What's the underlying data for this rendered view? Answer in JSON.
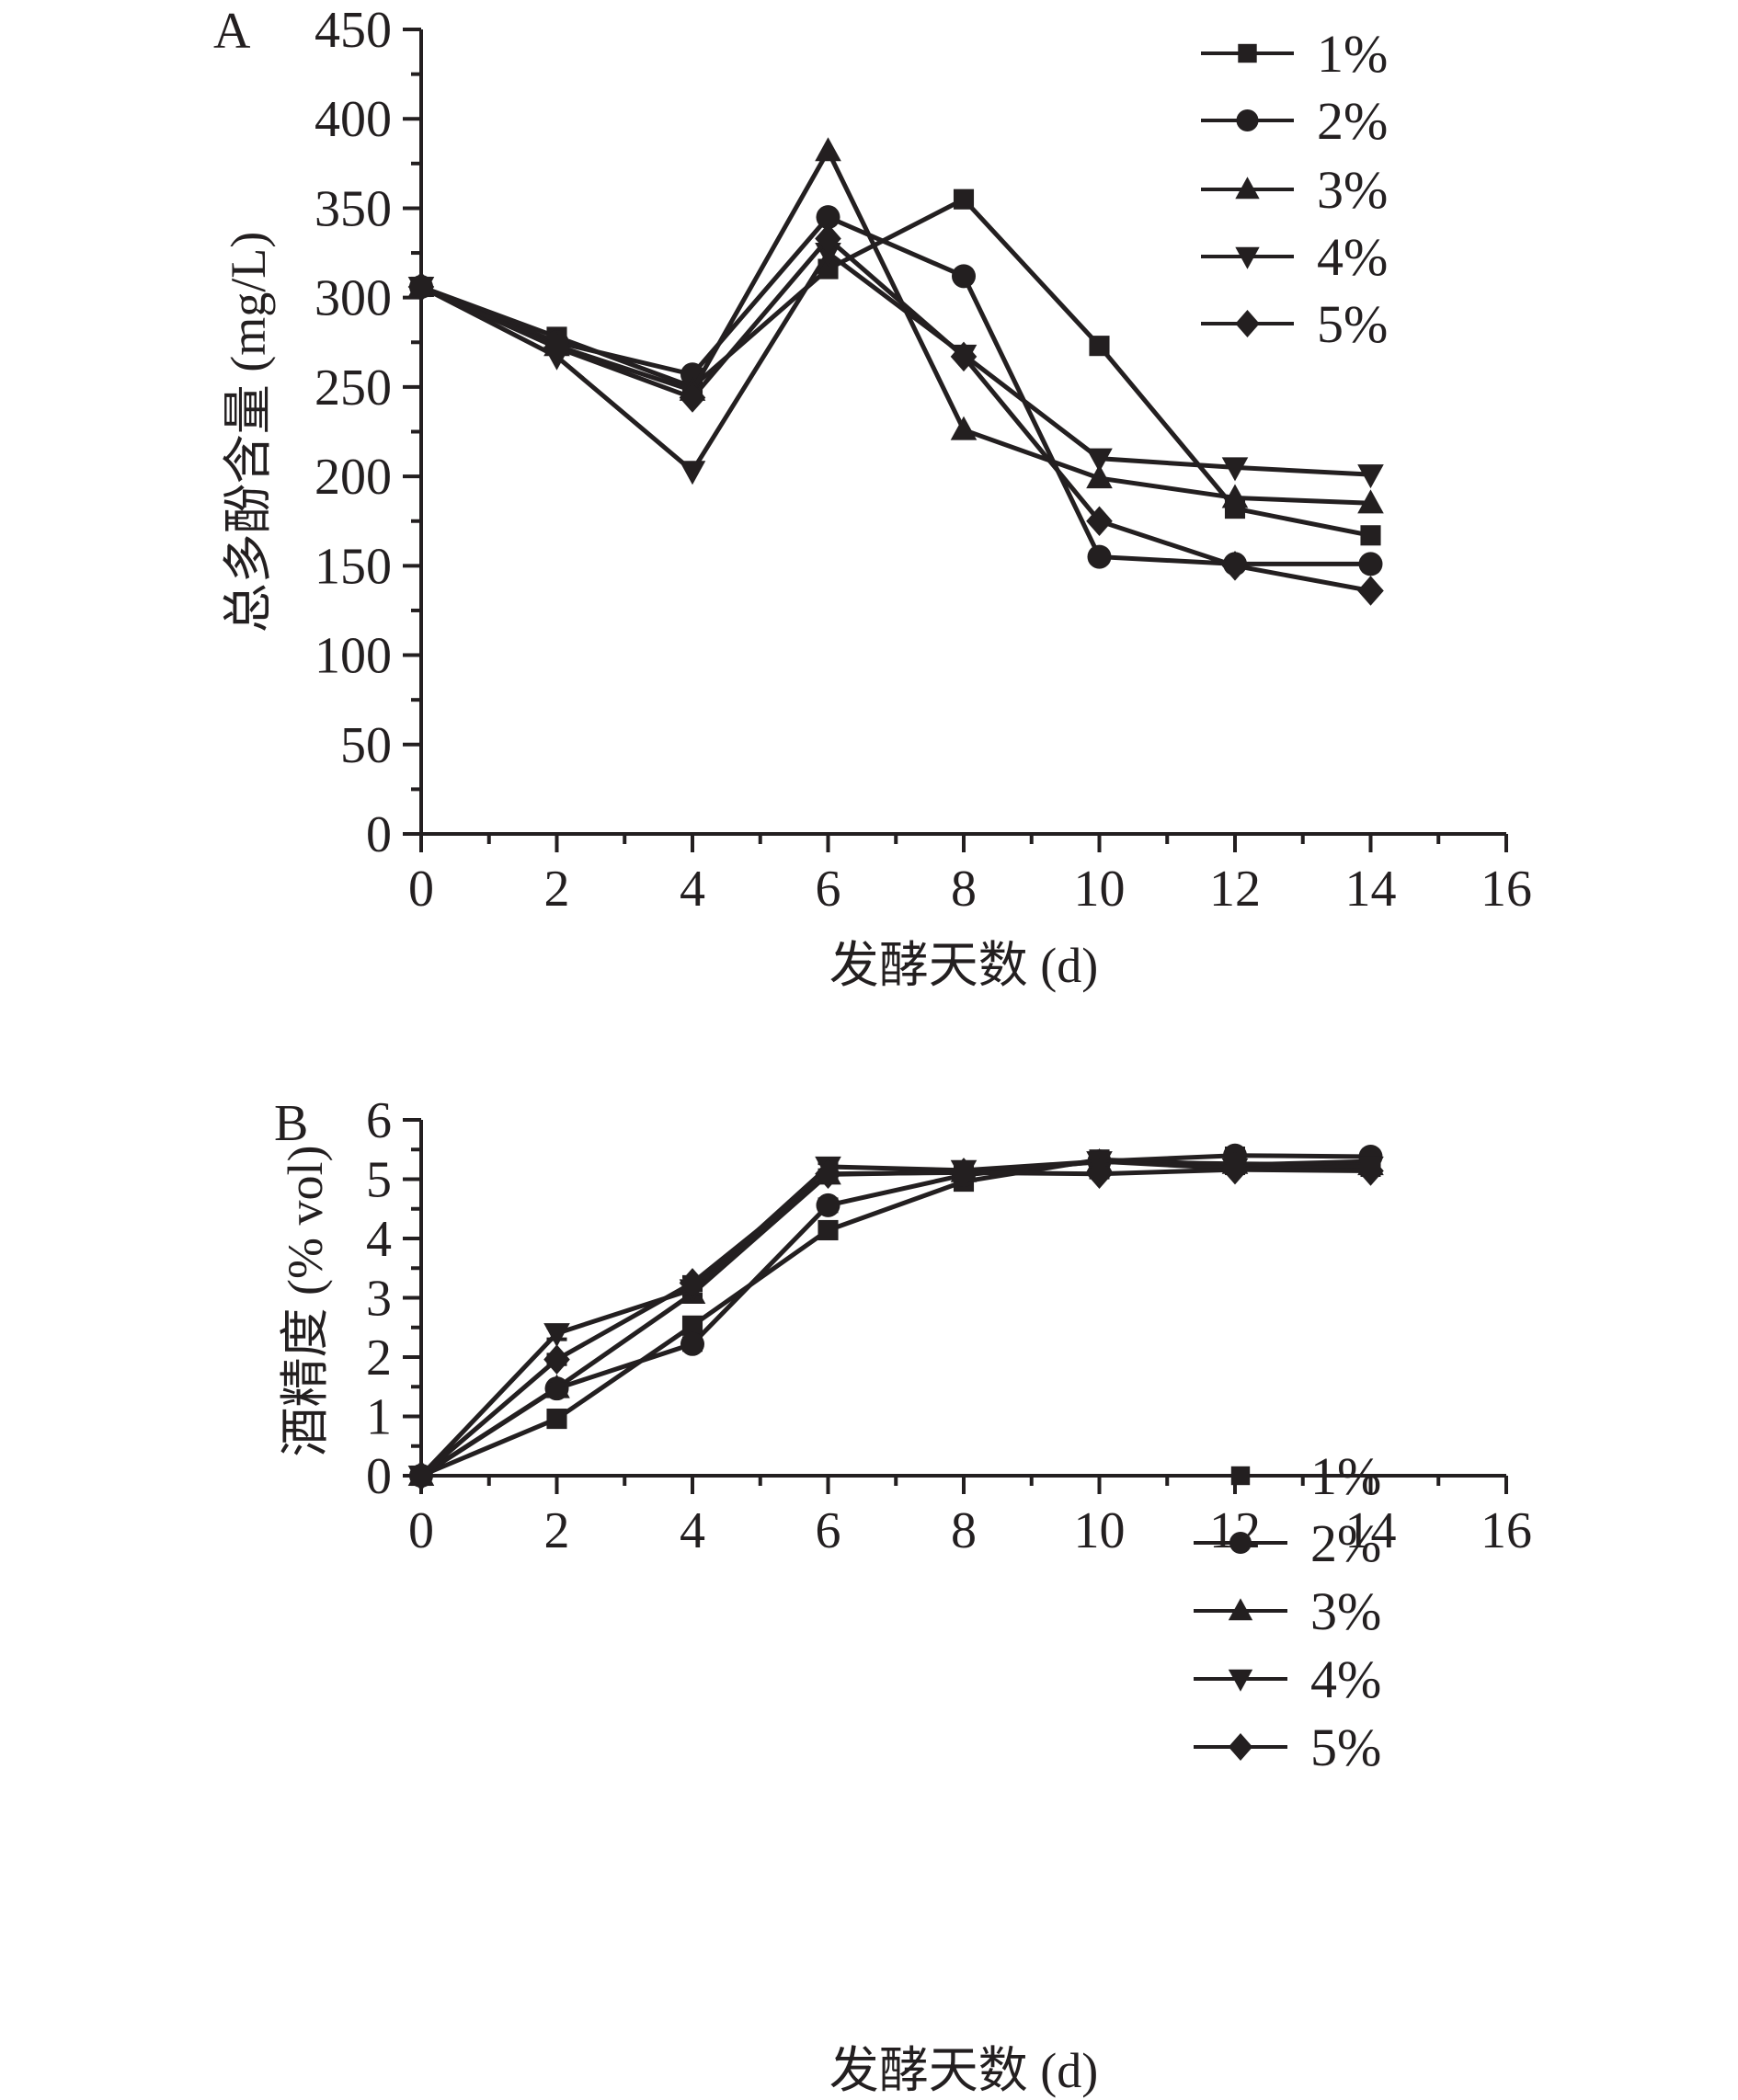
{
  "chart_data": [
    {
      "panel_label": "A",
      "type": "line",
      "title": "",
      "xlabel": "发酵天数 (d)",
      "ylabel": "总多酚含量 (mg/L)",
      "xlim": [
        0,
        16
      ],
      "ylim": [
        0,
        450
      ],
      "xticks": [
        "0",
        "2",
        "4",
        "6",
        "8",
        "10",
        "12",
        "14",
        "16"
      ],
      "yticks": [
        "0",
        "50",
        "100",
        "150",
        "200",
        "250",
        "300",
        "350",
        "400",
        "450"
      ],
      "grid": false,
      "legend_position": "top-right",
      "x": [
        0,
        2,
        4,
        6,
        8,
        10,
        12,
        14
      ],
      "series": [
        {
          "name": "1%",
          "marker": "square",
          "values": [
            306,
            278,
            250,
            316,
            355,
            273,
            182,
            167
          ]
        },
        {
          "name": "2%",
          "marker": "circle",
          "values": [
            306,
            275,
            257,
            345,
            312,
            155,
            151,
            151
          ]
        },
        {
          "name": "3%",
          "marker": "triangle-up",
          "values": [
            306,
            273,
            248,
            382,
            226,
            199,
            188,
            185
          ]
        },
        {
          "name": "4%",
          "marker": "triangle-down",
          "values": [
            306,
            267,
            203,
            325,
            268,
            210,
            205,
            201
          ]
        },
        {
          "name": "5%",
          "marker": "diamond",
          "values": [
            306,
            272,
            244,
            333,
            267,
            175,
            150,
            136
          ]
        }
      ]
    },
    {
      "panel_label": "B",
      "type": "line",
      "title": "",
      "xlabel": "发酵天数 (d)",
      "ylabel": "酒精度 (% vol)",
      "xlim": [
        0,
        16
      ],
      "ylim": [
        0,
        6
      ],
      "xticks": [
        "0",
        "2",
        "4",
        "6",
        "8",
        "10",
        "12",
        "14",
        "16"
      ],
      "yticks": [
        "0",
        "1",
        "2",
        "3",
        "4",
        "5",
        "6"
      ],
      "grid": false,
      "legend_position": "center-right",
      "error_bars": true,
      "x": [
        0,
        2,
        4,
        6,
        8,
        10,
        12,
        14
      ],
      "series": [
        {
          "name": "1%",
          "marker": "square",
          "values": [
            0,
            0.96,
            2.53,
            4.14,
            4.96,
            5.33,
            5.24,
            5.3
          ],
          "errors": [
            0.02,
            0.07,
            0.08,
            0.08,
            0.12,
            0.05,
            0.06,
            0.05
          ]
        },
        {
          "name": "2%",
          "marker": "circle",
          "values": [
            0,
            1.47,
            2.22,
            4.56,
            5.07,
            5.3,
            5.4,
            5.38
          ],
          "errors": [
            0.02,
            0.06,
            0.1,
            0.1,
            0.06,
            0.05,
            0.12,
            0.08
          ]
        },
        {
          "name": "3%",
          "marker": "triangle-up",
          "values": [
            0,
            1.48,
            3.07,
            5.08,
            5.12,
            5.29,
            5.26,
            5.24
          ],
          "errors": [
            0.02,
            0.06,
            0.06,
            0.07,
            0.05,
            0.05,
            0.05,
            0.05
          ]
        },
        {
          "name": "4%",
          "marker": "triangle-down",
          "values": [
            0,
            2.4,
            3.14,
            5.21,
            5.15,
            5.3,
            5.18,
            5.21
          ],
          "errors": [
            0.02,
            0.1,
            0.08,
            0.06,
            0.05,
            0.05,
            0.06,
            0.06
          ]
        },
        {
          "name": "5%",
          "marker": "diamond",
          "values": [
            0,
            1.96,
            3.25,
            5.09,
            5.11,
            5.09,
            5.16,
            5.14
          ],
          "errors": [
            0.02,
            0.08,
            0.1,
            0.06,
            0.05,
            0.06,
            0.06,
            0.07
          ]
        }
      ]
    }
  ]
}
